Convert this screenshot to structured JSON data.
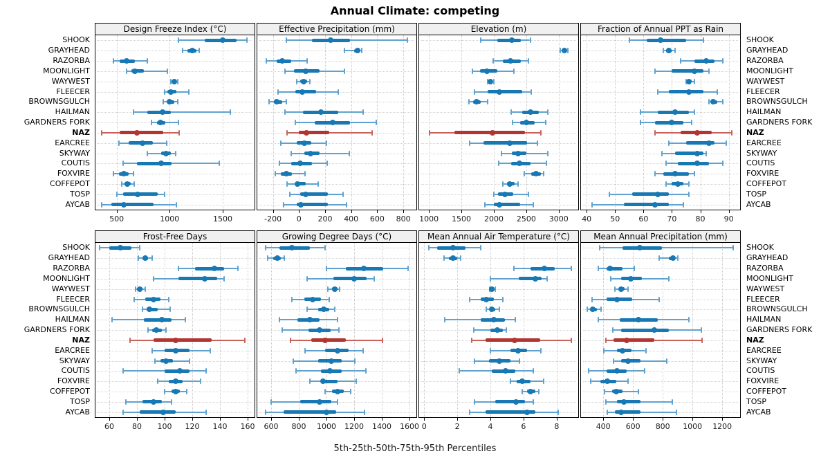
{
  "title": "Annual Climate: competing",
  "caption": "5th-25th-50th-75th-95th Percentiles",
  "highlight_site": "NAZ",
  "colors": {
    "blue": "#1878b4",
    "blue_light": "#60a2cf",
    "red": "#b23531",
    "red_light": "#c9625c",
    "grid": "#c9c9c9",
    "strip_bg": "#f0f0f0",
    "border": "#000000"
  },
  "sites": [
    "SHOOK",
    "GRAYHEAD",
    "RAZORBA",
    "MOONLIGHT",
    "WAYWEST",
    "FLEECER",
    "BROWNSGULCH",
    "HAILMAN",
    "GARDNERS FORK",
    "NAZ",
    "EARCREE",
    "SKYWAY",
    "COUTIS",
    "FOXVIRE",
    "COFFEPOT",
    "TOSP",
    "AYCAB"
  ],
  "chart_data": {
    "type": "dotplot-percentiles",
    "percentile_labels": [
      "5th",
      "25th",
      "50th",
      "75th",
      "95th"
    ],
    "legend_position": "none",
    "grid": "dotted",
    "panels": [
      {
        "title": "Design Freeze Index (°C)",
        "xlim": [
          300,
          1800
        ],
        "ticks": [
          500,
          1000,
          1500
        ],
        "values": {
          "SHOOK": [
            1080,
            1330,
            1500,
            1630,
            1730
          ],
          "GRAYHEAD": [
            1120,
            1170,
            1210,
            1250,
            1280
          ],
          "RAZORBA": [
            470,
            530,
            590,
            670,
            790
          ],
          "MOONLIGHT": [
            590,
            640,
            670,
            760,
            980
          ],
          "WAYWEST": [
            1010,
            1030,
            1045,
            1060,
            1075
          ],
          "FLEECER": [
            950,
            980,
            1010,
            1060,
            1180
          ],
          "BROWNSGULCH": [
            940,
            975,
            1000,
            1040,
            1075
          ],
          "HAILMAN": [
            660,
            790,
            930,
            1010,
            1570
          ],
          "GARDNERS FORK": [
            830,
            880,
            915,
            960,
            1080
          ],
          "NAZ": [
            360,
            530,
            690,
            940,
            1090
          ],
          "EARCREE": [
            520,
            610,
            740,
            840,
            970
          ],
          "SKYWAY": [
            790,
            920,
            965,
            1010,
            1055
          ],
          "COUTIS": [
            560,
            690,
            920,
            1020,
            1470
          ],
          "FOXVIRE": [
            470,
            520,
            570,
            615,
            660
          ],
          "COFFEPOT": [
            545,
            575,
            600,
            630,
            665
          ],
          "TOSP": [
            500,
            560,
            700,
            890,
            950
          ],
          "AYCAB": [
            360,
            450,
            565,
            850,
            1060
          ]
        }
      },
      {
        "title": "Effective Precipitation (mm)",
        "xlim": [
          -320,
          900
        ],
        "ticks": [
          -200,
          0,
          200,
          400,
          600,
          800
        ],
        "values": {
          "SHOOK": [
            -100,
            100,
            240,
            390,
            830
          ],
          "GRAYHEAD": [
            350,
            420,
            450,
            465,
            480
          ],
          "RAZORBA": [
            -250,
            -170,
            -130,
            -60,
            60
          ],
          "MOONLIGHT": [
            -110,
            -40,
            50,
            160,
            350
          ],
          "WAYWEST": [
            -20,
            10,
            35,
            60,
            85
          ],
          "FLEECER": [
            -160,
            -30,
            25,
            130,
            300
          ],
          "BROWNSGULCH": [
            -230,
            -195,
            -170,
            -130,
            -100
          ],
          "HAILMAN": [
            -110,
            30,
            170,
            300,
            490
          ],
          "GARDNERS FORK": [
            -30,
            120,
            260,
            390,
            590
          ],
          "NAZ": [
            -90,
            0,
            55,
            230,
            560
          ],
          "EARCREE": [
            -140,
            -20,
            40,
            95,
            210
          ],
          "SKYWAY": [
            -60,
            40,
            90,
            155,
            385
          ],
          "COUTIS": [
            -150,
            -60,
            10,
            100,
            215
          ],
          "FOXVIRE": [
            -180,
            -140,
            -95,
            -55,
            45
          ],
          "COFFEPOT": [
            -90,
            -30,
            -10,
            50,
            145
          ],
          "TOSP": [
            -70,
            10,
            50,
            220,
            340
          ],
          "AYCAB": [
            -120,
            -20,
            15,
            220,
            365
          ]
        }
      },
      {
        "title": "Elevation (m)",
        "xlim": [
          850,
          3300
        ],
        "ticks": [
          1000,
          1500,
          2000,
          2500,
          3000
        ],
        "values": {
          "SHOOK": [
            1800,
            2050,
            2280,
            2420,
            2560
          ],
          "GRAYHEAD": [
            3020,
            3060,
            3090,
            3110,
            3140
          ],
          "RAZORBA": [
            1990,
            2140,
            2260,
            2420,
            2530
          ],
          "MOONLIGHT": [
            1670,
            1790,
            1890,
            2060,
            2310
          ],
          "WAYWEST": [
            1905,
            1930,
            1950,
            1975,
            1995
          ],
          "FLEECER": [
            1700,
            1900,
            2090,
            2440,
            2570
          ],
          "BROWNSGULCH": [
            1620,
            1680,
            1730,
            1800,
            1905
          ],
          "HAILMAN": [
            2270,
            2440,
            2560,
            2690,
            2830
          ],
          "GARDNERS FORK": [
            2290,
            2400,
            2500,
            2630,
            2800
          ],
          "NAZ": [
            1010,
            1390,
            1980,
            2480,
            2720
          ],
          "EARCREE": [
            1630,
            1840,
            2240,
            2510,
            2670
          ],
          "SKYWAY": [
            2120,
            2280,
            2370,
            2500,
            2830
          ],
          "COUTIS": [
            2070,
            2270,
            2390,
            2570,
            2810
          ],
          "FOXVIRE": [
            2470,
            2570,
            2650,
            2720,
            2770
          ],
          "COFFEPOT": [
            2140,
            2200,
            2250,
            2320,
            2370
          ],
          "TOSP": [
            2000,
            2060,
            2170,
            2300,
            2530
          ],
          "AYCAB": [
            1860,
            2000,
            2090,
            2400,
            2610
          ]
        }
      },
      {
        "title": "Fraction of Annual PPT as Rain",
        "xlim": [
          38,
          94
        ],
        "ticks": [
          40,
          50,
          60,
          70,
          80,
          90
        ],
        "values": {
          "SHOOK": [
            55,
            61,
            66,
            75,
            81
          ],
          "GRAYHEAD": [
            67,
            68,
            69,
            70,
            71
          ],
          "RAZORBA": [
            73,
            78,
            82,
            85,
            88
          ],
          "MOONLIGHT": [
            64,
            70,
            78,
            81,
            83
          ],
          "WAYWEST": [
            75,
            75.5,
            76,
            77,
            78
          ],
          "FLEECER": [
            65,
            69,
            76,
            81,
            86
          ],
          "BROWNSGULCH": [
            83,
            84,
            84.5,
            86,
            88
          ],
          "HAILMAN": [
            59,
            65,
            71,
            76,
            78
          ],
          "GARDNERS FORK": [
            59,
            64,
            70,
            74,
            77
          ],
          "NAZ": [
            64,
            73,
            79,
            84,
            91
          ],
          "EARCREE": [
            69,
            75,
            83,
            85,
            89
          ],
          "SKYWAY": [
            66.5,
            71,
            79,
            81,
            82
          ],
          "COUTIS": [
            68,
            72,
            79,
            83,
            88
          ],
          "FOXVIRE": [
            64,
            67,
            71,
            76,
            78
          ],
          "COFFEPOT": [
            68,
            70,
            72,
            74,
            76
          ],
          "TOSP": [
            48,
            56,
            65,
            69,
            76
          ],
          "AYCAB": [
            42,
            53,
            64,
            69,
            74
          ]
        }
      },
      {
        "title": "Frost-Free Days",
        "xlim": [
          50,
          165
        ],
        "ticks": [
          60,
          80,
          100,
          120,
          140,
          160
        ],
        "values": {
          "SHOOK": [
            53,
            60,
            68,
            76,
            82
          ],
          "GRAYHEAD": [
            81,
            84,
            86,
            88,
            91
          ],
          "RAZORBA": [
            110,
            122,
            136,
            143,
            153
          ],
          "MOONLIGHT": [
            92,
            110,
            129,
            138,
            143
          ],
          "WAYWEST": [
            79,
            81,
            82,
            84,
            86
          ],
          "FLEECER": [
            78,
            86,
            92,
            97,
            103
          ],
          "BROWNSGULCH": [
            84,
            87,
            89,
            95,
            104
          ],
          "HAILMAN": [
            62,
            85,
            98,
            105,
            115
          ],
          "GARDNERS FORK": [
            88,
            91,
            94,
            98,
            101
          ],
          "NAZ": [
            75,
            92,
            108,
            134,
            158
          ],
          "EARCREE": [
            91,
            100,
            108,
            118,
            133
          ],
          "SKYWAY": [
            93,
            97,
            101,
            106,
            118
          ],
          "COUTIS": [
            70,
            100,
            111,
            118,
            130
          ],
          "FOXVIRE": [
            95,
            103,
            108,
            113,
            126
          ],
          "COFFEPOT": [
            100,
            105,
            108,
            111,
            116
          ],
          "TOSP": [
            72,
            84,
            92,
            98,
            105
          ],
          "AYCAB": [
            70,
            82,
            99,
            108,
            130
          ]
        }
      },
      {
        "title": "Growing Degree Days (°C)",
        "xlim": [
          500,
          1650
        ],
        "ticks": [
          600,
          800,
          1000,
          1200,
          1400,
          1600
        ],
        "values": {
          "SHOOK": [
            560,
            660,
            750,
            880,
            990
          ],
          "GRAYHEAD": [
            575,
            615,
            645,
            670,
            695
          ],
          "RAZORBA": [
            1000,
            1140,
            1270,
            1410,
            1590
          ],
          "MOONLIGHT": [
            860,
            1050,
            1200,
            1290,
            1345
          ],
          "WAYWEST": [
            1010,
            1040,
            1060,
            1080,
            1095
          ],
          "FLEECER": [
            750,
            840,
            900,
            960,
            1020
          ],
          "BROWNSGULCH": [
            860,
            940,
            980,
            1020,
            1060
          ],
          "HAILMAN": [
            660,
            790,
            880,
            950,
            1080
          ],
          "GARDNERS FORK": [
            680,
            870,
            950,
            1030,
            1090
          ],
          "NAZ": [
            740,
            890,
            990,
            1140,
            1405
          ],
          "EARCREE": [
            845,
            990,
            1080,
            1160,
            1265
          ],
          "SKYWAY": [
            760,
            940,
            1035,
            1110,
            1205
          ],
          "COUTIS": [
            780,
            960,
            1025,
            1110,
            1285
          ],
          "FOXVIRE": [
            880,
            960,
            975,
            1080,
            1215
          ],
          "COFFEPOT": [
            990,
            1040,
            1080,
            1125,
            1175
          ],
          "TOSP": [
            600,
            810,
            950,
            1035,
            1080
          ],
          "AYCAB": [
            560,
            690,
            1000,
            1070,
            1275
          ]
        }
      },
      {
        "title": "Mean Annual Air Temperature (°C)",
        "xlim": [
          -0.3,
          9.3
        ],
        "ticks": [
          0,
          2,
          4,
          6,
          8
        ],
        "values": {
          "SHOOK": [
            0.3,
            0.8,
            1.75,
            2.5,
            3.4
          ],
          "GRAYHEAD": [
            1.2,
            1.5,
            1.75,
            2.0,
            2.2
          ],
          "RAZORBA": [
            5.4,
            6.4,
            7.25,
            7.9,
            8.9
          ],
          "MOONLIGHT": [
            4.0,
            5.7,
            6.7,
            7.1,
            7.4
          ],
          "WAYWEST": [
            3.95,
            4.05,
            4.1,
            4.2,
            4.3
          ],
          "FLEECER": [
            2.75,
            3.4,
            3.75,
            4.2,
            4.75
          ],
          "BROWNSGULCH": [
            3.75,
            3.95,
            4.1,
            4.3,
            4.55
          ],
          "HAILMAN": [
            1.25,
            3.4,
            4.2,
            4.9,
            5.5
          ],
          "GARDNERS FORK": [
            3.0,
            4.0,
            4.4,
            4.75,
            4.95
          ],
          "NAZ": [
            2.85,
            3.7,
            5.45,
            7.0,
            8.9
          ],
          "EARCREE": [
            4.0,
            5.2,
            5.65,
            6.2,
            7.05
          ],
          "SKYWAY": [
            3.05,
            3.9,
            4.55,
            5.2,
            5.75
          ],
          "COUTIS": [
            2.1,
            4.1,
            4.9,
            5.5,
            6.6
          ],
          "FOXVIRE": [
            5.2,
            5.6,
            5.9,
            6.4,
            7.2
          ],
          "COFFEPOT": [
            5.9,
            6.2,
            6.4,
            6.7,
            6.9
          ],
          "TOSP": [
            3.05,
            4.3,
            5.55,
            6.1,
            6.6
          ],
          "AYCAB": [
            2.75,
            3.7,
            6.2,
            6.7,
            8.1
          ]
        }
      },
      {
        "title": "Mean Annual Precipitation (mm)",
        "xlim": [
          250,
          1320
        ],
        "ticks": [
          400,
          600,
          800,
          1000,
          1200
        ],
        "values": {
          "SHOOK": [
            375,
            530,
            645,
            795,
            1275
          ],
          "GRAYHEAD": [
            775,
            840,
            870,
            885,
            900
          ],
          "RAZORBA": [
            365,
            420,
            445,
            530,
            610
          ],
          "MOONLIGHT": [
            450,
            520,
            585,
            660,
            840
          ],
          "WAYWEST": [
            480,
            505,
            520,
            545,
            565
          ],
          "FLEECER": [
            325,
            420,
            490,
            595,
            775
          ],
          "BROWNSGULCH": [
            290,
            310,
            330,
            355,
            385
          ],
          "HAILMAN": [
            365,
            510,
            635,
            765,
            975
          ],
          "GARDNERS FORK": [
            465,
            520,
            745,
            840,
            1060
          ],
          "NAZ": [
            415,
            470,
            555,
            745,
            1065
          ],
          "EARCREE": [
            405,
            490,
            530,
            590,
            685
          ],
          "SKYWAY": [
            470,
            520,
            565,
            650,
            825
          ],
          "COUTIS": [
            300,
            420,
            490,
            555,
            680
          ],
          "FOXVIRE": [
            315,
            380,
            425,
            490,
            565
          ],
          "COFFEPOT": [
            410,
            460,
            485,
            530,
            635
          ],
          "TOSP": [
            415,
            490,
            540,
            650,
            865
          ],
          "AYCAB": [
            425,
            480,
            520,
            650,
            890
          ]
        }
      }
    ]
  }
}
